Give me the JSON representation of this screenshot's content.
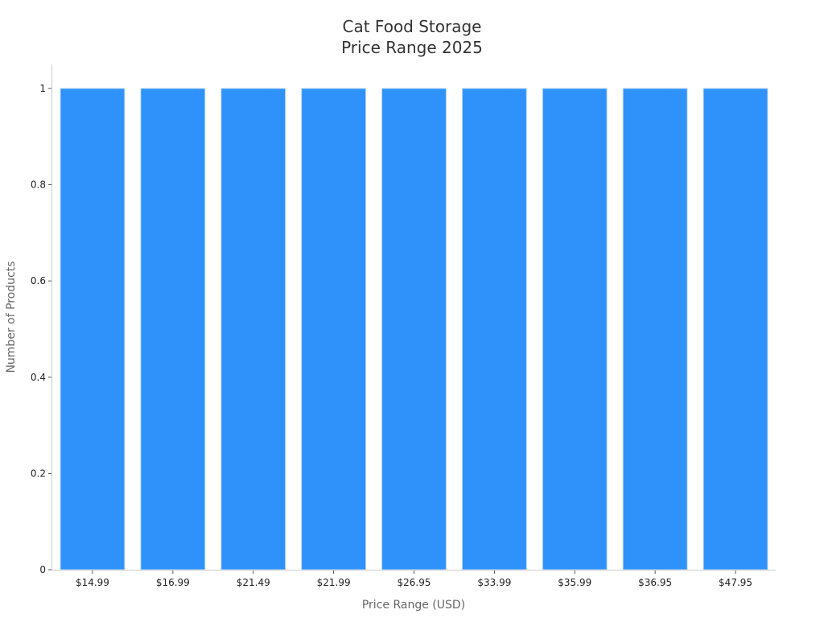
{
  "chart_data": {
    "type": "bar",
    "title": [
      "Cat Food Storage",
      "Price Range 2025"
    ],
    "xlabel": "Price Range (USD)",
    "ylabel": "Number of Products",
    "categories": [
      "$14.99",
      "$16.99",
      "$21.49",
      "$21.99",
      "$26.95",
      "$33.99",
      "$35.99",
      "$36.95",
      "$47.95"
    ],
    "values": [
      1,
      1,
      1,
      1,
      1,
      1,
      1,
      1,
      1
    ],
    "ylim": [
      0,
      1.05
    ],
    "yticks": [
      0,
      0.2,
      0.4,
      0.6,
      0.8,
      1
    ],
    "ytick_labels": [
      "0",
      "0.2",
      "0.4",
      "0.6",
      "0.8",
      "1"
    ],
    "bar_color": "#2f92fa",
    "grid": false,
    "legend": "none"
  }
}
